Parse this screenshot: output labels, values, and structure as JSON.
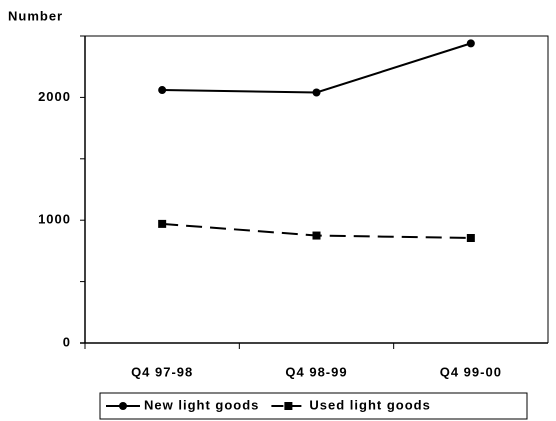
{
  "chart_data": {
    "type": "line",
    "y_label": "Number",
    "categories": [
      "Q4 97-98",
      "Q4 98-99",
      "Q4 99-00"
    ],
    "series": [
      {
        "name": "New light goods",
        "color": "#000000",
        "line_style": "solid",
        "marker": "circle",
        "values": [
          2060,
          2040,
          2440
        ]
      },
      {
        "name": "Used light goods",
        "color": "#000000",
        "line_style": "dashed",
        "marker": "square",
        "values": [
          970,
          875,
          855
        ]
      }
    ],
    "ylim": [
      0,
      2500
    ],
    "yticks": [
      0,
      1000,
      2000
    ],
    "minor_yticks": [
      500,
      1500,
      2500
    ],
    "grid": false,
    "legend": "bottom"
  }
}
